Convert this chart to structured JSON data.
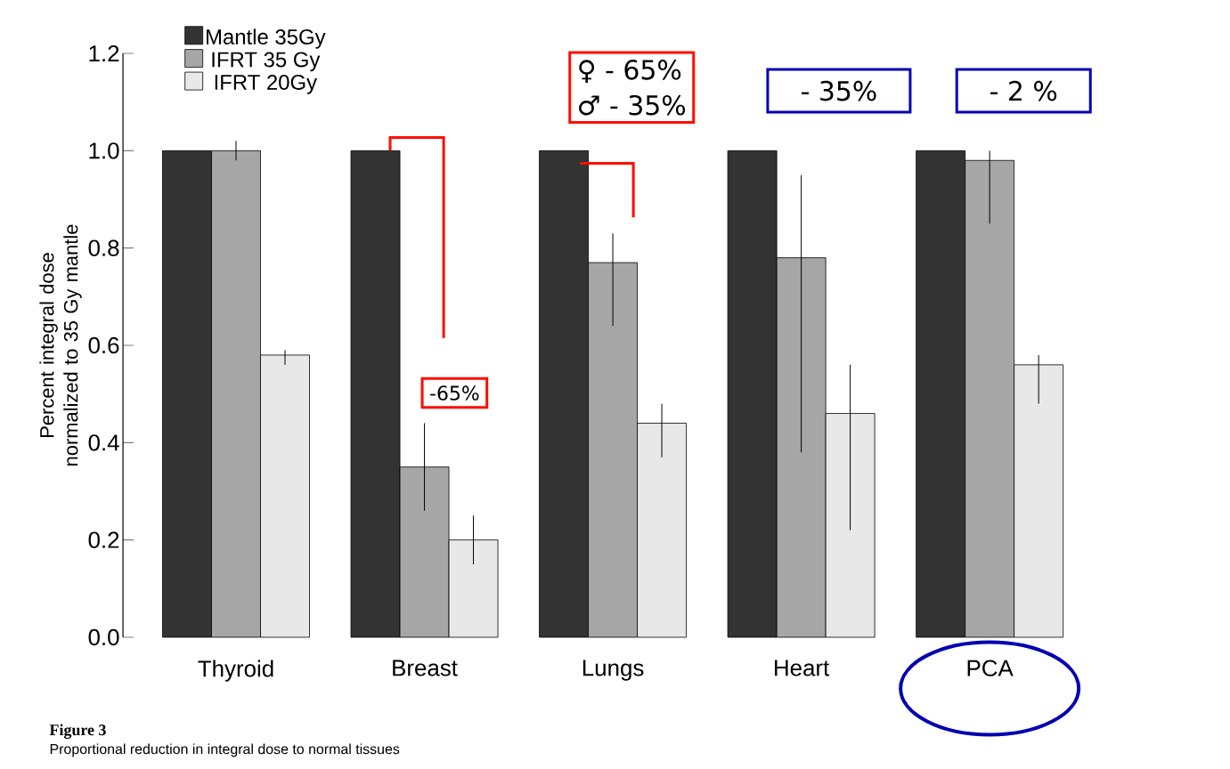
{
  "chart_data": {
    "type": "bar",
    "ylabel": "Percent integral dose normalized to 35 Gy mantle",
    "categories": [
      "Thyroid",
      "Breast",
      "Lungs",
      "Heart",
      "PCA"
    ],
    "series": [
      {
        "name": "Mantle 35Gy",
        "color": "#333333",
        "values": [
          1.0,
          1.0,
          1.0,
          1.0,
          1.0
        ]
      },
      {
        "name": "IFRT 35 Gy",
        "color": "#a6a6a6",
        "values": [
          1.0,
          0.35,
          0.77,
          0.78,
          0.98
        ],
        "errors": [
          [
            0.98,
            1.02
          ],
          [
            0.26,
            0.44
          ],
          [
            0.64,
            0.83
          ],
          [
            0.38,
            0.95
          ],
          [
            0.85,
            1.0
          ]
        ]
      },
      {
        "name": "IFRT 20Gy",
        "color": "#e8e8e8",
        "values": [
          0.58,
          0.2,
          0.44,
          0.46,
          0.56
        ],
        "errors": [
          [
            0.56,
            0.59
          ],
          [
            0.15,
            0.25
          ],
          [
            0.37,
            0.48
          ],
          [
            0.22,
            0.56
          ],
          [
            0.48,
            0.58
          ]
        ]
      }
    ],
    "ylim": [
      0,
      1.2
    ],
    "yticks": [
      {
        "value": 0,
        "label": "0.0"
      },
      {
        "value": 0.2,
        "label": "0.2"
      },
      {
        "value": 0.4,
        "label": "0.4"
      },
      {
        "value": 0.6,
        "label": "0.6"
      },
      {
        "value": 0.8,
        "label": "0.8"
      },
      {
        "value": 1.0,
        "label": "1.0"
      },
      {
        "value": 1.2,
        "label": "1.2"
      }
    ],
    "legend": "top left",
    "annotations": [
      "♀ - 65%",
      "♂ - 35%",
      "- 35%",
      "- 2 %",
      "-65%",
      "Figure 3",
      "Proportional reduction in integral dose to normal tissues"
    ]
  }
}
